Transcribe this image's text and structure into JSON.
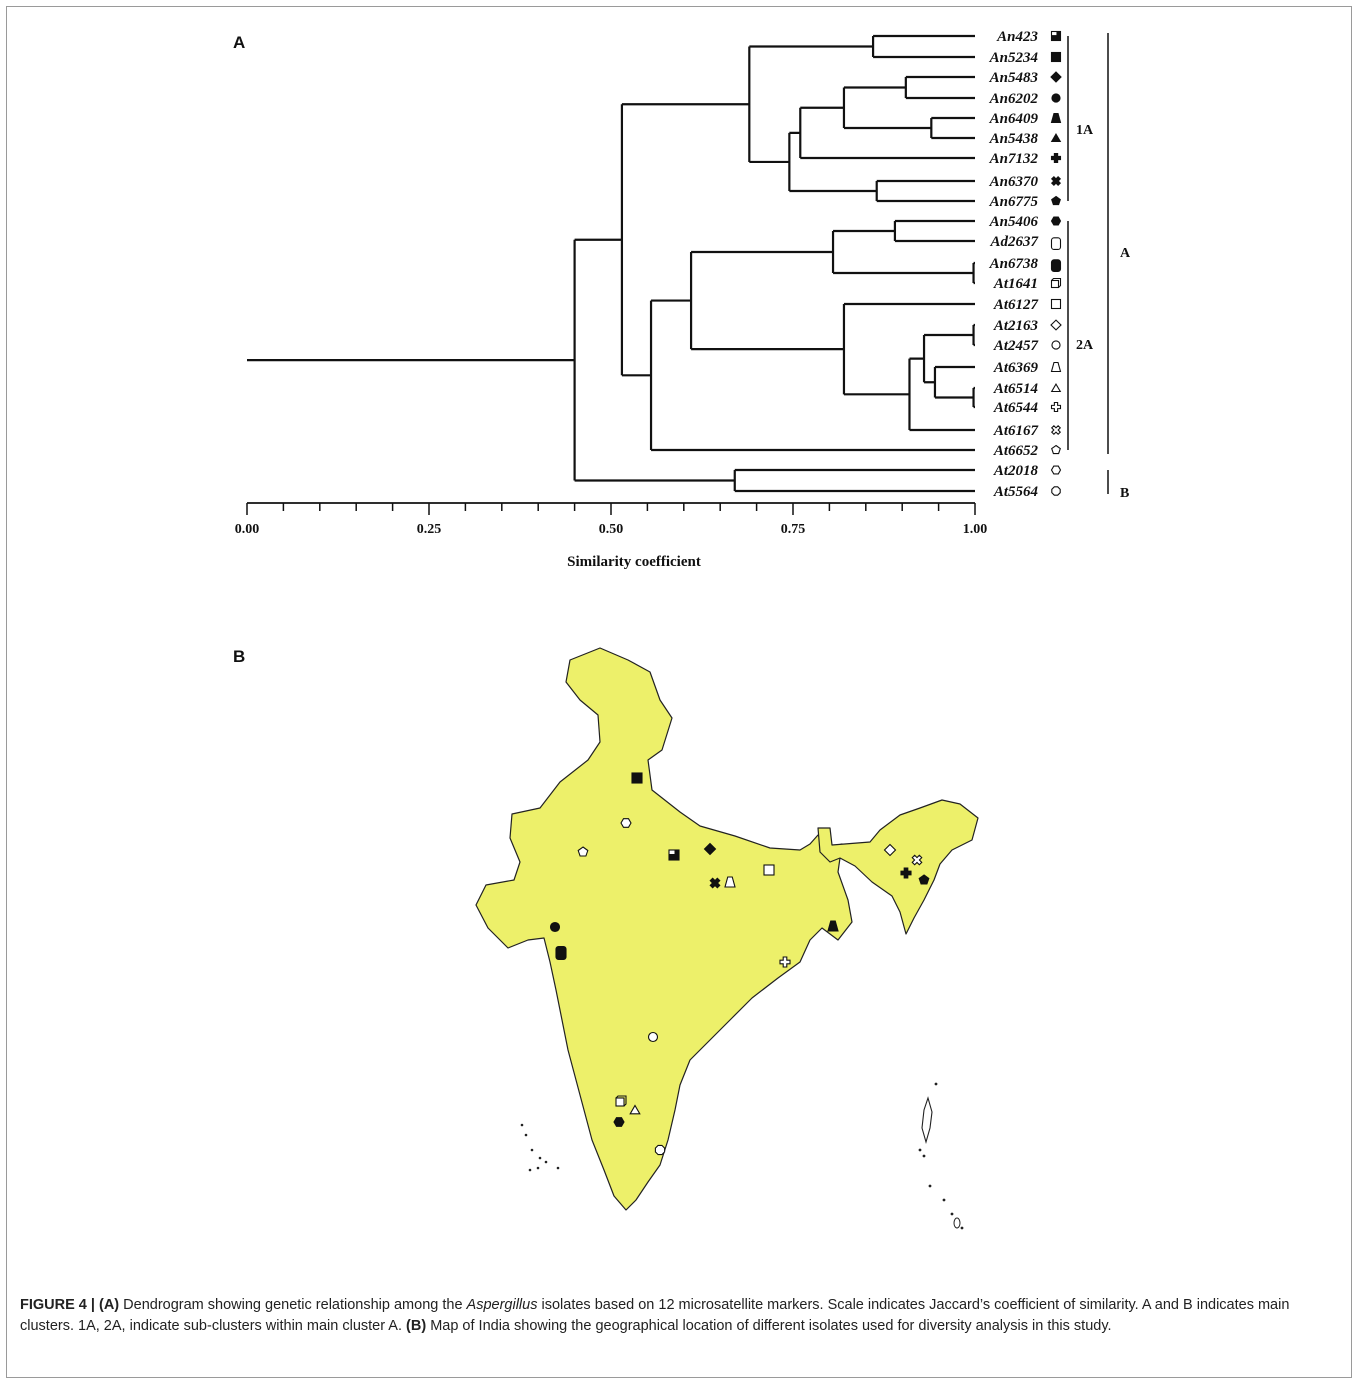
{
  "panels": {
    "a_letter": "A",
    "b_letter": "B"
  },
  "dendrogram": {
    "axis_title": "Similarity coefficient",
    "axis_range": [
      0,
      1
    ],
    "ticks": [
      "0.00",
      "0.25",
      "0.50",
      "0.75",
      "1.00"
    ],
    "leaves": [
      {
        "label": "An423",
        "marker": "half-filled-square"
      },
      {
        "label": "An5234",
        "marker": "filled-square"
      },
      {
        "label": "An5483",
        "marker": "filled-diamond"
      },
      {
        "label": "An6202",
        "marker": "filled-circle"
      },
      {
        "label": "An6409",
        "marker": "filled-trapezoid"
      },
      {
        "label": "An5438",
        "marker": "filled-triangle"
      },
      {
        "label": "An7132",
        "marker": "filled-cross"
      },
      {
        "label": "An6370",
        "marker": "filled-x"
      },
      {
        "label": "An6775",
        "marker": "filled-pentagon"
      },
      {
        "label": "An5406",
        "marker": "filled-hexagon"
      },
      {
        "label": "Ad2637",
        "marker": "open-rounded-rect"
      },
      {
        "label": "An6738",
        "marker": "filled-rounded-rect"
      },
      {
        "label": "At1641",
        "marker": "open-cube"
      },
      {
        "label": "At6127",
        "marker": "open-square"
      },
      {
        "label": "At2163",
        "marker": "open-diamond"
      },
      {
        "label": "At2457",
        "marker": "open-circle"
      },
      {
        "label": "At6369",
        "marker": "open-trapezoid"
      },
      {
        "label": "At6514",
        "marker": "open-triangle"
      },
      {
        "label": "At6544",
        "marker": "open-cross"
      },
      {
        "label": "At6167",
        "marker": "open-x"
      },
      {
        "label": "At6652",
        "marker": "open-pentagon"
      },
      {
        "label": "At2018",
        "marker": "open-hexagon"
      },
      {
        "label": "At5564",
        "marker": "open-octagon"
      }
    ],
    "clusters": [
      {
        "label": "1A",
        "members": [
          "An423",
          "An5234",
          "An5483",
          "An6202",
          "An6409",
          "An5438",
          "An7132",
          "An6370",
          "An6775"
        ]
      },
      {
        "label": "2A",
        "members": [
          "An5406",
          "Ad2637",
          "An6738",
          "At1641",
          "At6127",
          "At2163",
          "At2457",
          "At6369",
          "At6514",
          "At6544",
          "At6167",
          "At6652"
        ]
      },
      {
        "label": "A",
        "members": [
          "An423",
          "At6652"
        ]
      },
      {
        "label": "B",
        "members": [
          "At2018",
          "At5564"
        ]
      }
    ]
  },
  "map": {
    "fill_color": "#edf06a",
    "markers": [
      {
        "marker": "filled-square",
        "isolate": "An5234"
      },
      {
        "marker": "open-hexagon",
        "isolate": "At2018"
      },
      {
        "marker": "open-pentagon",
        "isolate": "At6652"
      },
      {
        "marker": "half-filled-square",
        "isolate": "An423"
      },
      {
        "marker": "filled-diamond",
        "isolate": "An5483"
      },
      {
        "marker": "filled-x",
        "isolate": "An6370"
      },
      {
        "marker": "open-trapezoid",
        "isolate": "At6369"
      },
      {
        "marker": "open-square",
        "isolate": "At6127"
      },
      {
        "marker": "filled-circle",
        "isolate": "An6202"
      },
      {
        "marker": "filled-rounded-rect",
        "isolate": "An6738"
      },
      {
        "marker": "filled-trapezoid",
        "isolate": "An6409"
      },
      {
        "marker": "open-cross",
        "isolate": "At6544"
      },
      {
        "marker": "open-circle",
        "isolate": "At2457"
      },
      {
        "marker": "open-cube",
        "isolate": "At1641"
      },
      {
        "marker": "open-triangle",
        "isolate": "At6514"
      },
      {
        "marker": "filled-hexagon",
        "isolate": "An5406"
      },
      {
        "marker": "open-octagon",
        "isolate": "At5564"
      },
      {
        "marker": "open-diamond",
        "isolate": "At2163"
      },
      {
        "marker": "open-x",
        "isolate": "At6167"
      },
      {
        "marker": "filled-cross",
        "isolate": "An7132"
      },
      {
        "marker": "filled-pentagon",
        "isolate": "An6775"
      }
    ]
  },
  "caption": {
    "figure_label": "FIGURE 4 |",
    "a_ref": "(A)",
    "text1": " Dendrogram showing genetic relationship among the ",
    "genus": "Aspergillus",
    "text2": " isolates based on 12 microsatellite markers. Scale indicates Jaccard’s coefficient of similarity. A and B indicates main clusters. 1A, 2A, indicate sub-clusters within main cluster A. ",
    "b_ref": "(B)",
    "text3": " Map of India showing the geographical location of different isolates used for diversity analysis in this study."
  }
}
